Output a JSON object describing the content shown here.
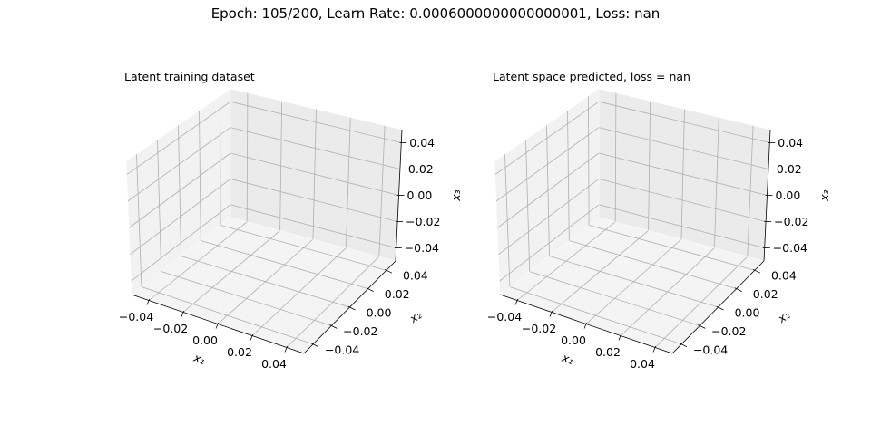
{
  "figure": {
    "suptitle": "Epoch: 105/200, Learn Rate: 0.0006000000000000001, Loss: nan"
  },
  "chart_data": [
    {
      "type": "scatter",
      "projection": "3d",
      "title": "Latent training dataset",
      "xlabel": "x₁",
      "ylabel": "x₂",
      "zlabel": "x₃",
      "xlim": [
        -0.05,
        0.05
      ],
      "ylim": [
        -0.05,
        0.05
      ],
      "zlim": [
        -0.05,
        0.05
      ],
      "xticks": [
        "−0.04",
        "−0.02",
        "0.00",
        "0.02",
        "0.04"
      ],
      "yticks": [
        "−0.04",
        "−0.02",
        "0.00",
        "0.02",
        "0.04"
      ],
      "zticks": [
        "−0.04",
        "−0.02",
        "0.00",
        "0.02",
        "0.04"
      ],
      "grid": true,
      "points": []
    },
    {
      "type": "scatter",
      "projection": "3d",
      "title": "Latent space predicted, loss = nan",
      "xlabel": "x₁",
      "ylabel": "x₂",
      "zlabel": "x₃",
      "xlim": [
        -0.05,
        0.05
      ],
      "ylim": [
        -0.05,
        0.05
      ],
      "zlim": [
        -0.05,
        0.05
      ],
      "xticks": [
        "−0.04",
        "−0.02",
        "0.00",
        "0.02",
        "0.04"
      ],
      "yticks": [
        "−0.04",
        "−0.02",
        "0.00",
        "0.02",
        "0.04"
      ],
      "zticks": [
        "−0.04",
        "−0.02",
        "0.00",
        "0.02",
        "0.04"
      ],
      "grid": true,
      "points": []
    }
  ]
}
